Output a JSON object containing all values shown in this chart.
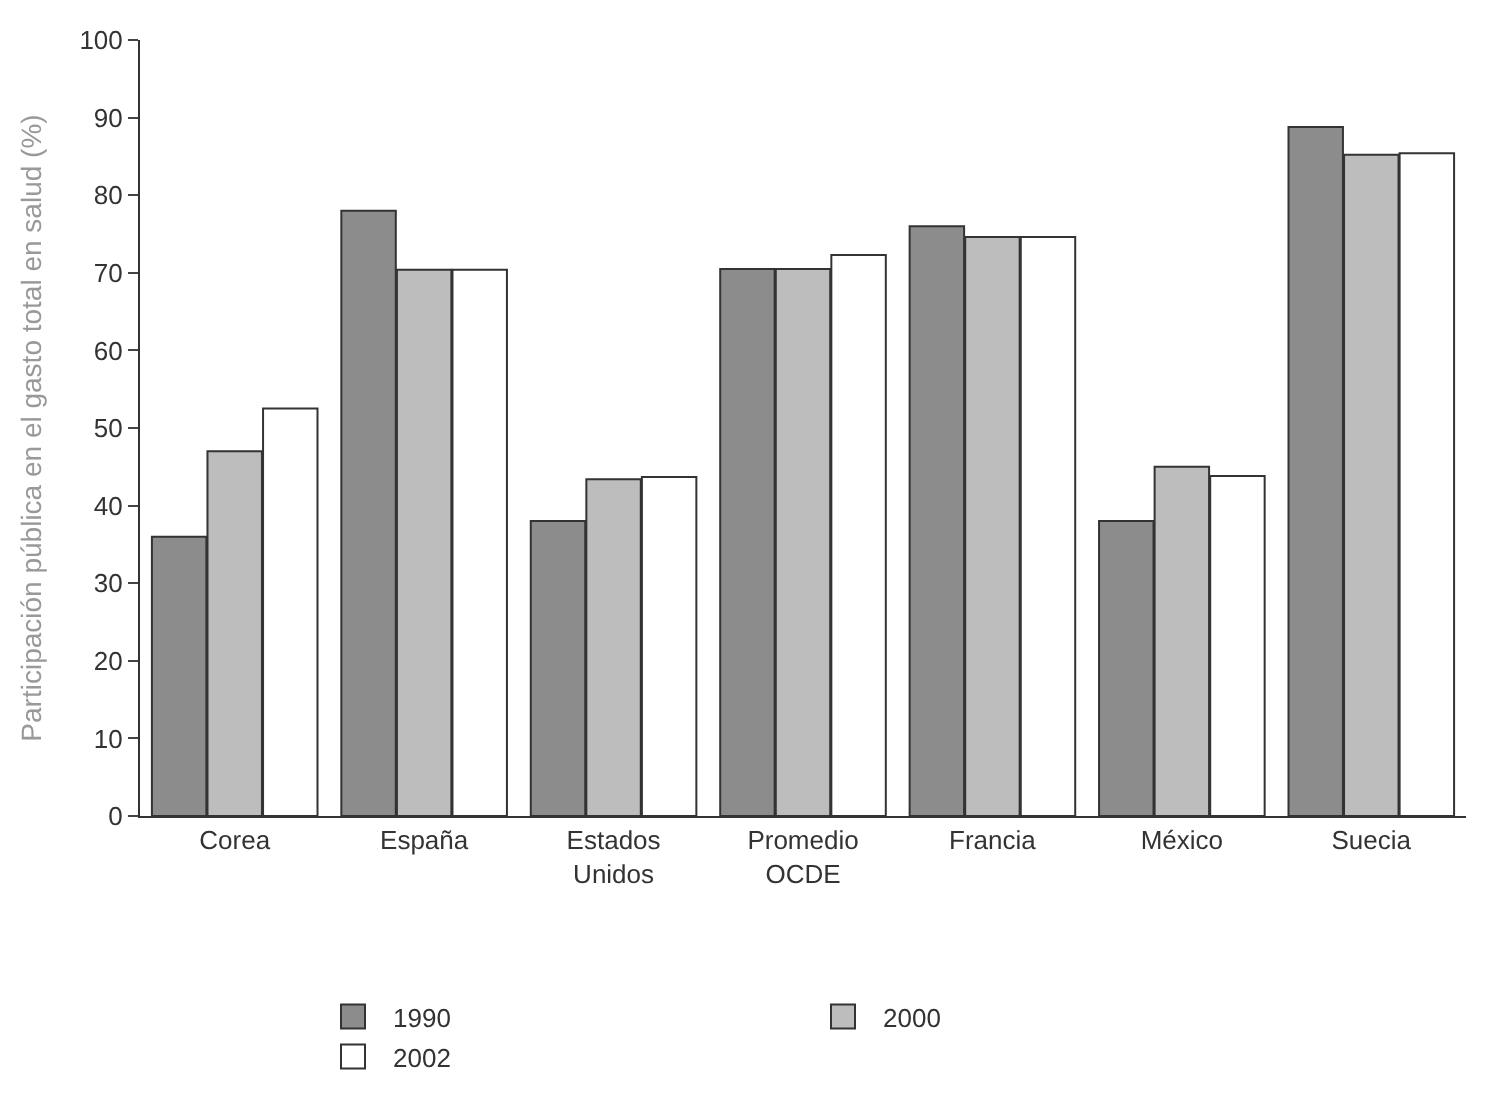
{
  "chart_data": {
    "type": "bar",
    "ylabel": "Participación pública en el gasto total en salud (%)",
    "categories": [
      "Corea",
      "España",
      "Estados\nUnidos",
      "Promedio\nOCDE",
      "Francia",
      "México",
      "Suecia"
    ],
    "series": [
      {
        "name": "1990",
        "color": "#8c8c8c",
        "values": [
          36,
          78,
          38,
          70.5,
          76,
          38,
          88.8
        ]
      },
      {
        "name": "2000",
        "color": "#bdbdbd",
        "values": [
          47,
          70.4,
          43.4,
          70.5,
          74.6,
          45,
          85.2
        ]
      },
      {
        "name": "2002",
        "color": "#ffffff",
        "values": [
          52.5,
          70.4,
          43.7,
          72.3,
          74.6,
          43.8,
          85.4
        ]
      }
    ],
    "ylim": [
      0,
      100
    ],
    "yticks": [
      0,
      10,
      20,
      30,
      40,
      50,
      60,
      70,
      80,
      90,
      100
    ],
    "grid": false,
    "legend": "bottom"
  }
}
